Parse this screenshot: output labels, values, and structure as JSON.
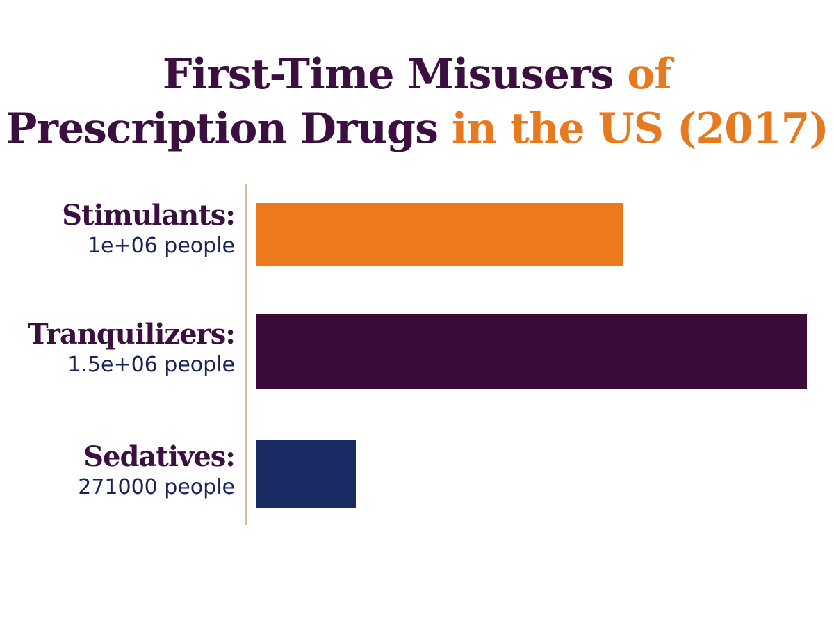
{
  "title": {
    "line1_main": "First-Time Misusers",
    "line1_accent": "of",
    "line2_main": "Prescription Drugs",
    "line2_accent": "in the US (2017)"
  },
  "colors": {
    "title_dark": "#3b1040",
    "title_accent": "#e67a21",
    "axis": "#d2bca0"
  },
  "chart_data": {
    "type": "bar",
    "orientation": "horizontal",
    "title": "First-Time Misusers of Prescription Drugs in the US (2017)",
    "categories": [
      "Stimulants",
      "Tranquilizers",
      "Sedatives"
    ],
    "values": [
      1000000,
      1500000,
      271000
    ],
    "xlim": [
      0,
      1500000
    ],
    "grid": false,
    "labels": [
      {
        "name": "Stimulants:",
        "value_text": "1e+06 people"
      },
      {
        "name": "Tranquilizers:",
        "value_text": "1.5e+06 people"
      },
      {
        "name": "Sedatives:",
        "value_text": "271000 people"
      }
    ],
    "bar_colors": [
      "#ec7a1c",
      "#3b0c3a",
      "#1a2a63"
    ]
  }
}
